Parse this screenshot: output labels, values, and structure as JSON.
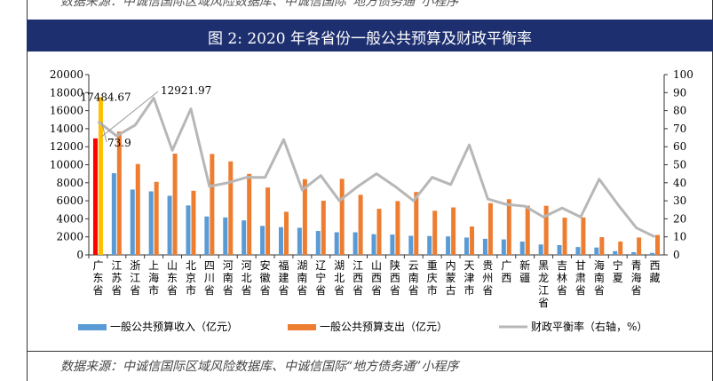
{
  "top_source_text": "数据来源：中诚信国际区域风险数据库、中诚信国际“地方债务通”小程序",
  "figure_title": "图 2:   2020 年各省份一般公共预算及财政平衡率",
  "bottom_source_text": "数据来源：中诚信国际区域风险数据库、中诚信国际“地方债务通”小程序",
  "colors": {
    "header_bg": "#1d2f6f",
    "revenue": "#5a9bd5",
    "expenditure": "#ed7d31",
    "balance_rate": "#b7b7b7",
    "highlight_revenue": "#ff0000",
    "highlight_expenditure": "#ffc000"
  },
  "chart_data": {
    "type": "bar",
    "categories": [
      "广东省",
      "江苏省",
      "浙江省",
      "上海市",
      "山东省",
      "北京市",
      "四川省",
      "河南省",
      "河北省",
      "安徽省",
      "福建省",
      "湖南省",
      "辽宁省",
      "湖北省",
      "江西省",
      "山西省",
      "陕西省",
      "云南省",
      "重庆市",
      "内蒙古",
      "天津市",
      "贵州省",
      "广西",
      "新疆",
      "黑龙江省",
      "吉林省",
      "甘肃省",
      "海南省",
      "宁夏",
      "青海省",
      "西藏"
    ],
    "series": [
      {
        "name": "一般公共预算收入（亿元）",
        "axis": "left",
        "kind": "bar",
        "values": [
          12921.97,
          9059,
          7248,
          7046,
          6560,
          5484,
          4261,
          4155,
          3826,
          3216,
          3079,
          3009,
          2655,
          2512,
          2508,
          2297,
          2257,
          2117,
          2095,
          2051,
          1924,
          1786,
          1717,
          1477,
          1153,
          1085,
          875,
          817,
          419,
          298,
          221
        ]
      },
      {
        "name": "一般公共预算支出（亿元）",
        "axis": "left",
        "kind": "bar",
        "values": [
          17484.67,
          13682,
          10082,
          8102,
          11232,
          7116,
          11200,
          10373,
          8984,
          7474,
          4785,
          8403,
          6005,
          8440,
          6666,
          5111,
          5966,
          6975,
          4894,
          5268,
          3151,
          5739,
          6179,
          5453,
          5449,
          4128,
          4154,
          1968,
          1483,
          1930,
          2207
        ]
      },
      {
        "name": "财政平衡率（右轴，%）",
        "axis": "right",
        "kind": "line",
        "values": [
          73.9,
          66,
          72,
          87,
          58,
          81,
          38,
          40,
          43,
          43,
          64,
          36,
          44,
          30,
          38,
          45,
          38,
          30,
          43,
          39,
          61,
          31,
          28,
          27,
          21,
          26,
          21,
          42,
          28,
          15,
          10
        ]
      }
    ],
    "annotations": [
      "17484.67",
      "12921.97",
      "73.9"
    ],
    "y_left": {
      "lim": [
        0,
        20000
      ],
      "ticks": [
        "0",
        "2000",
        "4000",
        "6000",
        "8000",
        "10000",
        "12000",
        "14000",
        "16000",
        "18000",
        "20000"
      ]
    },
    "y_right": {
      "lim": [
        0,
        100
      ],
      "ticks": [
        "0",
        "10",
        "20",
        "30",
        "40",
        "50",
        "60",
        "70",
        "80",
        "90",
        "100"
      ]
    },
    "grid": false,
    "legend_position": "bottom"
  }
}
